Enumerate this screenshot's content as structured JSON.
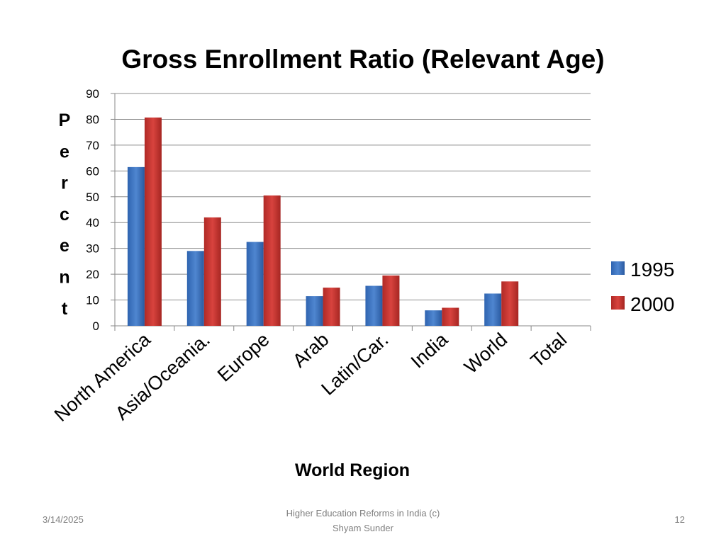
{
  "chart_data": {
    "type": "bar",
    "title": "Gross Enrollment Ratio (Relevant Age)",
    "xlabel": "World Region",
    "ylabel": "Percent",
    "categories": [
      "North America",
      "Asia/Oceania.",
      "Europe",
      "Arab",
      "Latin/Car.",
      "India",
      "World",
      "Total"
    ],
    "series": [
      {
        "name": "1995",
        "color": "#4f81bd",
        "values": [
          61.5,
          29,
          32.5,
          11.5,
          15.5,
          6,
          12.5,
          null
        ]
      },
      {
        "name": "2000",
        "color": "#c0504d",
        "values": [
          80.7,
          42,
          50.5,
          14.8,
          19.5,
          7,
          17.2,
          null
        ]
      }
    ],
    "ylim": [
      0,
      90
    ],
    "yticks": [
      "0",
      "10",
      "20",
      "30",
      "40",
      "50",
      "60",
      "70",
      "80",
      "90"
    ],
    "grid": true,
    "legend_position": "right"
  },
  "footer": {
    "date": "3/14/2025",
    "center_line1": "Higher Education Reforms in India (c)",
    "center_line2": "Shyam Sunder",
    "page": "12"
  }
}
